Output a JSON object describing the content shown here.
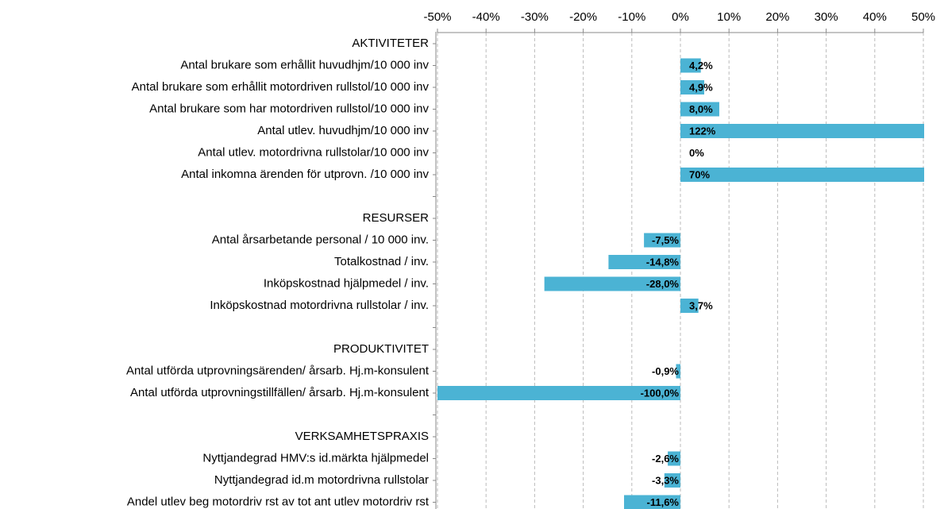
{
  "chart_data": {
    "type": "barh",
    "categories": [
      "AKTIVITETER",
      "Antal brukare som erhållit huvudhjm/10 000 inv",
      "Antal brukare som erhållit motordriven rullstol/10 000 inv",
      "Antal brukare som har motordriven rullstol/10 000 inv",
      "Antal utlev. huvudhjm/10 000 inv",
      "Antal utlev. motordrivna rullstolar/10 000 inv",
      "Antal inkomna ärenden för utprovn. /10 000 inv",
      null,
      "RESURSER",
      "Antal årsarbetande personal / 10 000 inv.",
      "Totalkostnad / inv.",
      "Inköpskostnad hjälpmedel / inv.",
      "Inköpskostnad motordrivna rullstolar / inv.",
      null,
      "PRODUKTIVITET",
      "Antal utförda utprovningsärenden/ årsarb. Hj.m-konsulent",
      "Antal utförda utprovningstillfällen/ årsarb. Hj.m-konsulent",
      null,
      "VERKSAMHETSPRAXIS",
      "Nyttjandegrad HMV:s id.märkta hjälpmedel",
      "Nyttjandegrad id.m motordrivna rullstolar",
      "Andel utlev beg motordriv rst av tot ant utlev motordriv rst"
    ],
    "values": [
      null,
      4.2,
      4.9,
      8.0,
      122,
      0,
      70,
      null,
      null,
      -7.5,
      -14.8,
      -28.0,
      3.7,
      null,
      null,
      -0.9,
      -100.0,
      null,
      null,
      -2.6,
      -3.3,
      -11.6
    ],
    "value_labels": [
      null,
      "4,2%",
      "4,9%",
      "8,0%",
      "122%",
      "0%",
      "70%",
      null,
      null,
      "-7,5%",
      "-14,8%",
      "-28,0%",
      "3,7%",
      null,
      null,
      "-0,9%",
      "-100,0%",
      null,
      null,
      "-2,6%",
      "-3,3%",
      "-11,6%"
    ],
    "color": "#4bb3d4",
    "xlim": [
      -50,
      50
    ],
    "xticks": [
      {
        "value": -50,
        "label": "-50%"
      },
      {
        "value": -40,
        "label": "-40%"
      },
      {
        "value": -30,
        "label": "-30%"
      },
      {
        "value": -20,
        "label": "-20%"
      },
      {
        "value": -10,
        "label": "-10%"
      },
      {
        "value": 0,
        "label": "0%"
      },
      {
        "value": 10,
        "label": "10%"
      },
      {
        "value": 20,
        "label": "20%"
      },
      {
        "value": 30,
        "label": "30%"
      },
      {
        "value": 40,
        "label": "40%"
      },
      {
        "value": 50,
        "label": "50%"
      }
    ],
    "grid": true
  }
}
